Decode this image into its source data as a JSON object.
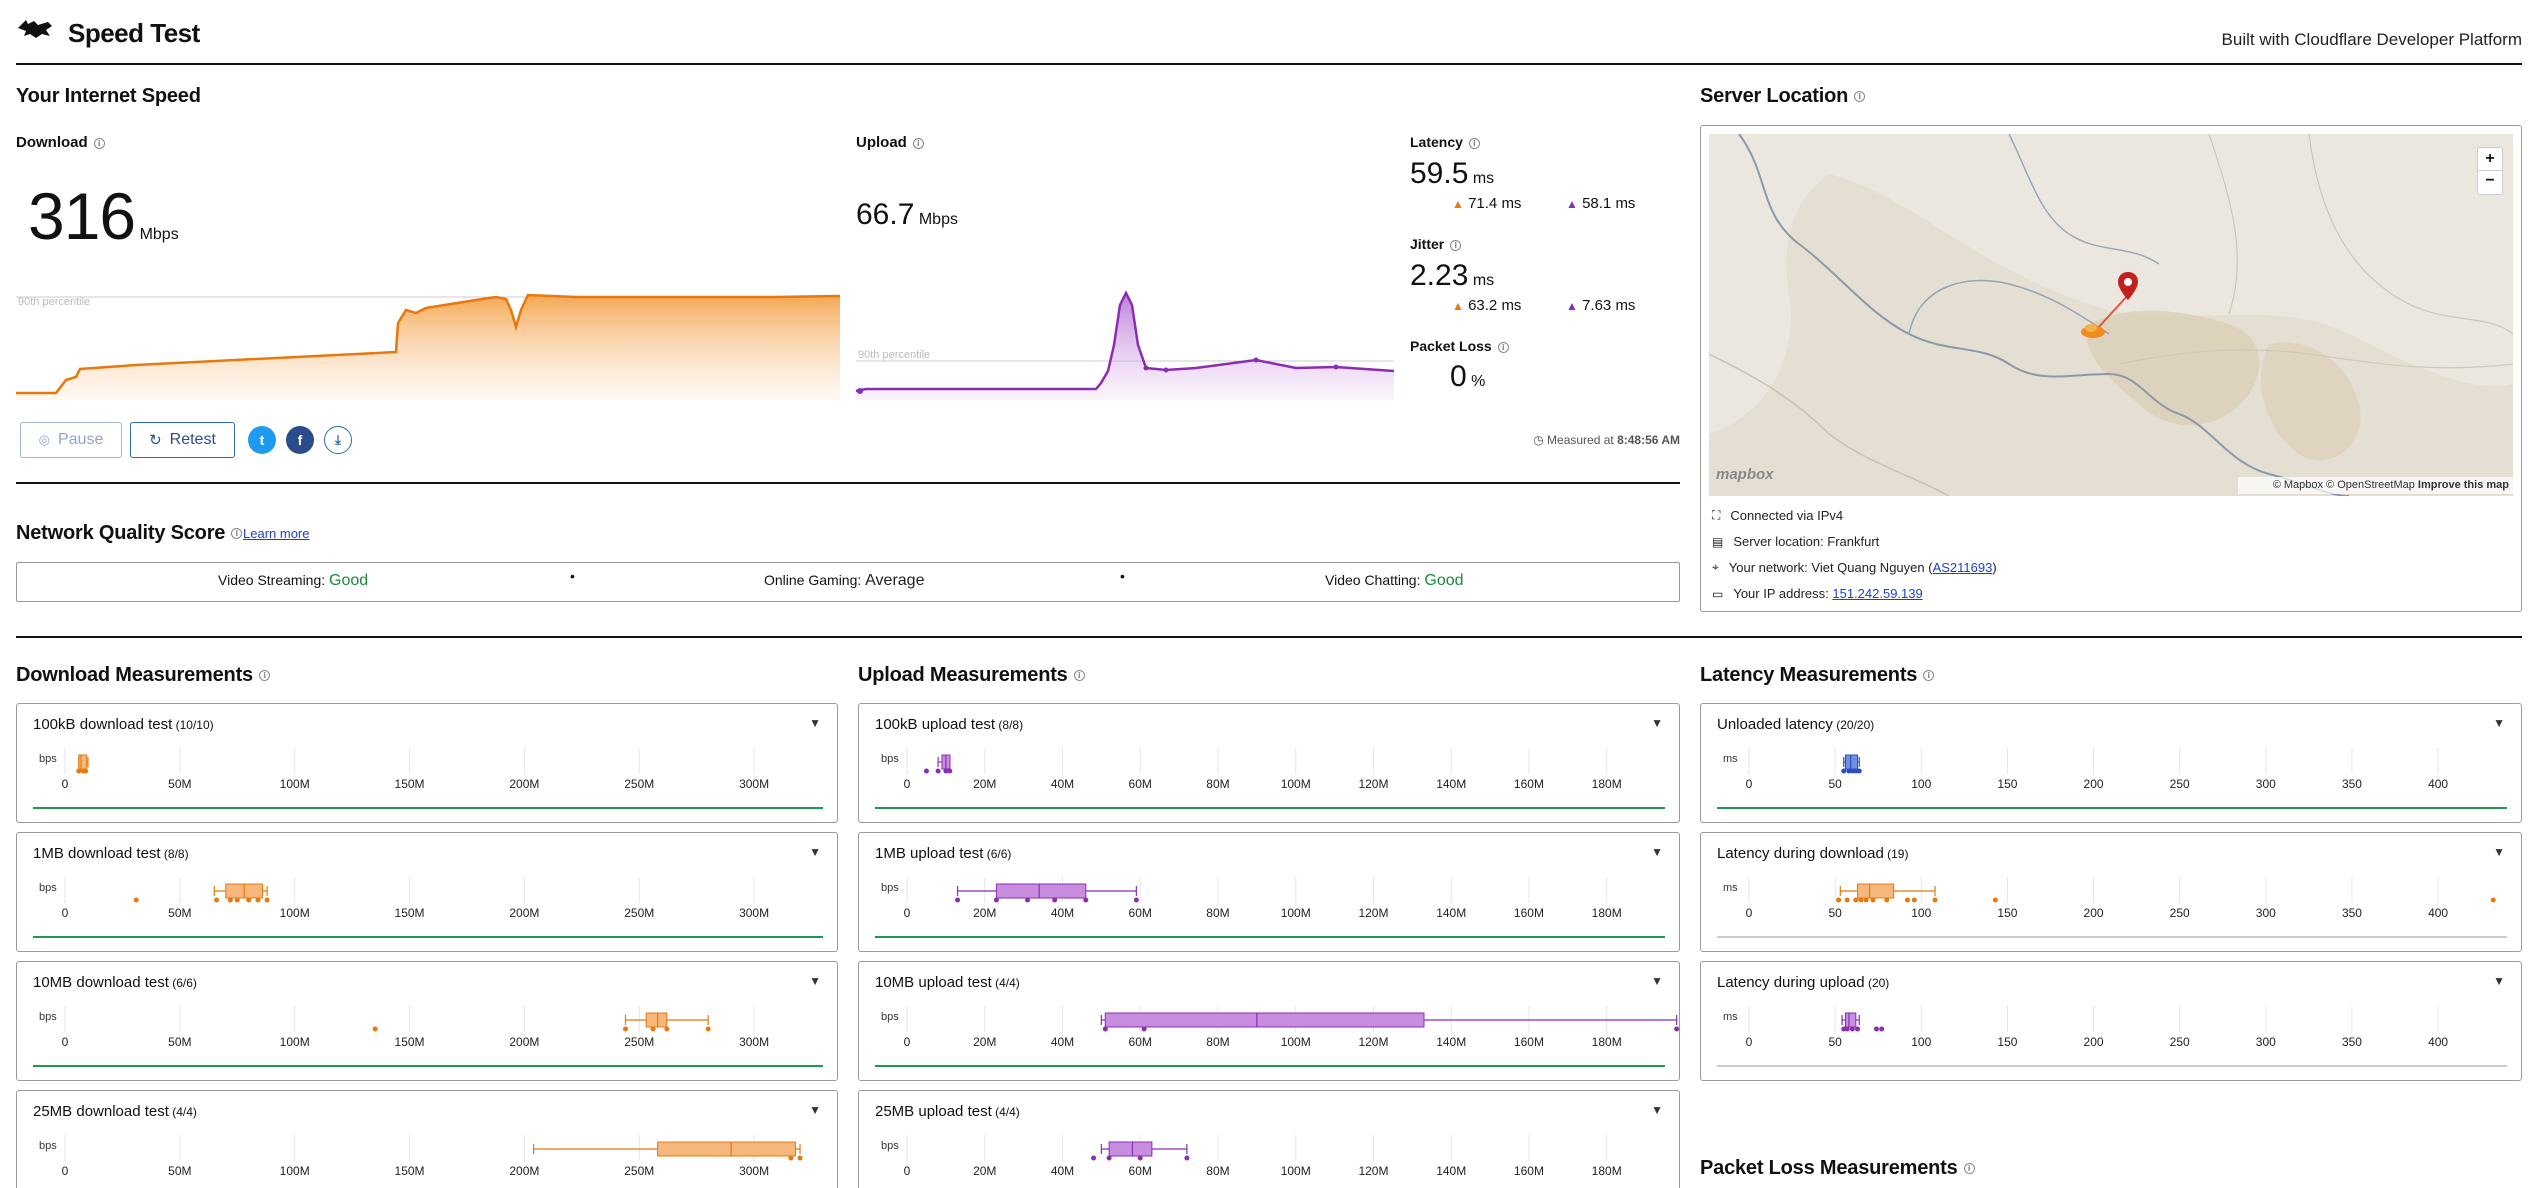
{
  "header": {
    "title": "Speed Test",
    "built_with": "Built with Cloudflare Developer Platform"
  },
  "speed": {
    "section_title": "Your Internet Speed",
    "download": {
      "label": "Download",
      "value": "316",
      "unit": "Mbps",
      "percentile_label": "90th percentile"
    },
    "upload": {
      "label": "Upload",
      "value": "66.7",
      "unit": "Mbps",
      "percentile_label": "90th percentile"
    },
    "latency": {
      "label": "Latency",
      "value": "59.5",
      "unit": "ms",
      "down": "71.4",
      "up": "58.1",
      "sub_unit": "ms"
    },
    "jitter": {
      "label": "Jitter",
      "value": "2.23",
      "unit": "ms",
      "down": "63.2",
      "up": "7.63",
      "sub_unit": "ms"
    },
    "packet_loss": {
      "label": "Packet Loss",
      "value": "0",
      "unit": "%"
    },
    "pause_label": "Pause",
    "retest_label": "Retest",
    "measured_label": "Measured at",
    "measured_time": "8:48:56 AM"
  },
  "server": {
    "title": "Server Location",
    "map_attrib": "© Mapbox © OpenStreetMap",
    "map_improve": "Improve this map",
    "mapbox_logo": "mapbox",
    "connected": "Connected via IPv4",
    "location": "Server location: Frankfurt",
    "network_prefix": "Your network: Viet Quang Nguyen (",
    "network_as": "AS211693",
    "network_suffix": ")",
    "ip_prefix": "Your IP address: ",
    "ip": "151.242.59.139"
  },
  "quality": {
    "title": "Network Quality Score",
    "learn_more": "Learn more",
    "items": [
      {
        "label": "Video Streaming:",
        "value": "Good",
        "color": "#1a8a3a"
      },
      {
        "label": "Online Gaming:",
        "value": "Average",
        "color": "#222222"
      },
      {
        "label": "Video Chatting:",
        "value": "Good",
        "color": "#1a8a3a"
      }
    ]
  },
  "sections": {
    "download": "Download Measurements",
    "upload": "Upload Measurements",
    "latency": "Latency Measurements",
    "packet": "Packet Loss Measurements"
  },
  "axes": {
    "dl": [
      "0",
      "50M",
      "100M",
      "150M",
      "200M",
      "250M",
      "300M"
    ],
    "ul": [
      "0",
      "20M",
      "40M",
      "60M",
      "80M",
      "100M",
      "120M",
      "140M",
      "160M",
      "180M"
    ],
    "lat": [
      "0",
      "50",
      "100",
      "150",
      "200",
      "250",
      "300",
      "350",
      "400"
    ],
    "bps": "bps",
    "ms": "ms"
  },
  "tests": {
    "dl": [
      {
        "name": "100kB download test",
        "count": "(10/10)"
      },
      {
        "name": "1MB download test",
        "count": "(8/8)"
      },
      {
        "name": "10MB download test",
        "count": "(6/6)"
      },
      {
        "name": "25MB download test",
        "count": "(4/4)"
      }
    ],
    "ul": [
      {
        "name": "100kB upload test",
        "count": "(8/8)"
      },
      {
        "name": "1MB upload test",
        "count": "(6/6)"
      },
      {
        "name": "10MB upload test",
        "count": "(4/4)"
      },
      {
        "name": "25MB upload test",
        "count": "(4/4)"
      }
    ],
    "lat": [
      {
        "name": "Unloaded latency",
        "count": "(20/20)"
      },
      {
        "name": "Latency during download",
        "count": "(19)"
      },
      {
        "name": "Latency during upload",
        "count": "(20)"
      }
    ]
  },
  "chart_data": [
    {
      "type": "box",
      "name": "100kB download test",
      "unit": "bps",
      "xlim": [
        0,
        330000000
      ],
      "min": 6000000,
      "q1": 6000000,
      "median": 7000000,
      "q3": 9000000,
      "max": 10000000,
      "points": [
        6000000,
        8000000,
        9000000
      ]
    },
    {
      "type": "box",
      "name": "1MB download test",
      "unit": "bps",
      "xlim": [
        0,
        330000000
      ],
      "min": 65000000,
      "q1": 70000000,
      "median": 78000000,
      "q3": 86000000,
      "max": 88000000,
      "points": [
        31000000,
        66000000,
        72000000,
        75000000,
        80000000,
        84000000,
        88000000
      ]
    },
    {
      "type": "box",
      "name": "10MB download test",
      "unit": "bps",
      "xlim": [
        0,
        330000000
      ],
      "min": 244000000,
      "q1": 253000000,
      "median": 258000000,
      "q3": 262000000,
      "max": 280000000,
      "points": [
        135000000,
        244000000,
        256000000,
        262000000,
        280000000
      ]
    },
    {
      "type": "box",
      "name": "25MB download test",
      "unit": "bps",
      "xlim": [
        0,
        330000000
      ],
      "min": 204000000,
      "q1": 258000000,
      "median": 290000000,
      "q3": 318000000,
      "max": 320000000,
      "points": [
        316000000,
        320000000
      ]
    },
    {
      "type": "box",
      "name": "100kB upload test",
      "unit": "bps",
      "xlim": [
        0,
        195000000
      ],
      "min": 8000000,
      "q1": 9000000,
      "median": 10000000,
      "q3": 11000000,
      "max": 11000000,
      "points": [
        5000000,
        8000000,
        10000000,
        11000000
      ]
    },
    {
      "type": "box",
      "name": "1MB upload test",
      "unit": "bps",
      "xlim": [
        0,
        195000000
      ],
      "min": 13000000,
      "q1": 23000000,
      "median": 34000000,
      "q3": 46000000,
      "max": 59000000,
      "points": [
        13000000,
        23000000,
        31000000,
        38000000,
        46000000,
        59000000
      ]
    },
    {
      "type": "box",
      "name": "10MB upload test",
      "unit": "bps",
      "xlim": [
        0,
        195000000
      ],
      "min": 50000000,
      "q1": 51000000,
      "median": 90000000,
      "q3": 133000000,
      "max": 198000000,
      "points": [
        51000000,
        61000000,
        198000000
      ]
    },
    {
      "type": "box",
      "name": "25MB upload test",
      "unit": "bps",
      "xlim": [
        0,
        195000000
      ],
      "min": 50000000,
      "q1": 52000000,
      "median": 58000000,
      "q3": 63000000,
      "max": 72000000,
      "points": [
        48000000,
        52000000,
        60000000,
        72000000
      ]
    },
    {
      "type": "box",
      "name": "Unloaded latency",
      "unit": "ms",
      "xlim": [
        0,
        440
      ],
      "min": 55,
      "q1": 56,
      "median": 59,
      "q3": 63,
      "max": 64,
      "points": [
        55,
        58,
        60,
        62,
        64
      ]
    },
    {
      "type": "box",
      "name": "Latency during download",
      "unit": "ms",
      "xlim": [
        0,
        440
      ],
      "min": 53,
      "q1": 63,
      "median": 70,
      "q3": 84,
      "max": 108,
      "points": [
        52,
        57,
        62,
        65,
        68,
        72,
        80,
        92,
        96,
        108,
        143,
        432
      ]
    },
    {
      "type": "box",
      "name": "Latency during upload",
      "unit": "ms",
      "xlim": [
        0,
        440
      ],
      "min": 54,
      "q1": 56,
      "median": 58,
      "q3": 62,
      "max": 64,
      "points": [
        55,
        57,
        60,
        63,
        74,
        77
      ]
    }
  ]
}
